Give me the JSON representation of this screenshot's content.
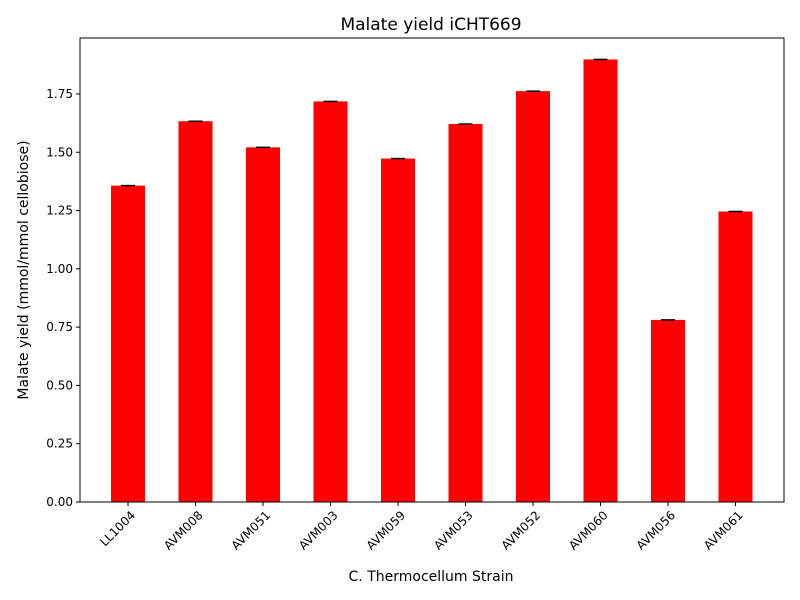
{
  "chart_data": {
    "type": "bar",
    "title": "Malate yield iCHT669",
    "xlabel": "C. Thermocellum Strain",
    "ylabel": "Malate yield (mmol/mmol cellobiose)",
    "categories": [
      "LL1004",
      "AVM008",
      "AVM051",
      "AVM003",
      "AVM059",
      "AVM053",
      "AVM052",
      "AVM060",
      "AVM056",
      "AVM061"
    ],
    "values": [
      1.357,
      1.633,
      1.521,
      1.718,
      1.473,
      1.621,
      1.762,
      1.898,
      0.781,
      1.246
    ],
    "ylim": [
      0,
      1.99
    ],
    "yticks": [
      "0.00",
      "0.25",
      "0.50",
      "0.75",
      "1.00",
      "1.25",
      "1.50",
      "1.75"
    ],
    "ytick_values": [
      0,
      0.25,
      0.5,
      0.75,
      1.0,
      1.25,
      1.5,
      1.75
    ],
    "bar_color": "#ff0000",
    "error_bar_color": "#000000",
    "grid": false,
    "legend": "none"
  }
}
